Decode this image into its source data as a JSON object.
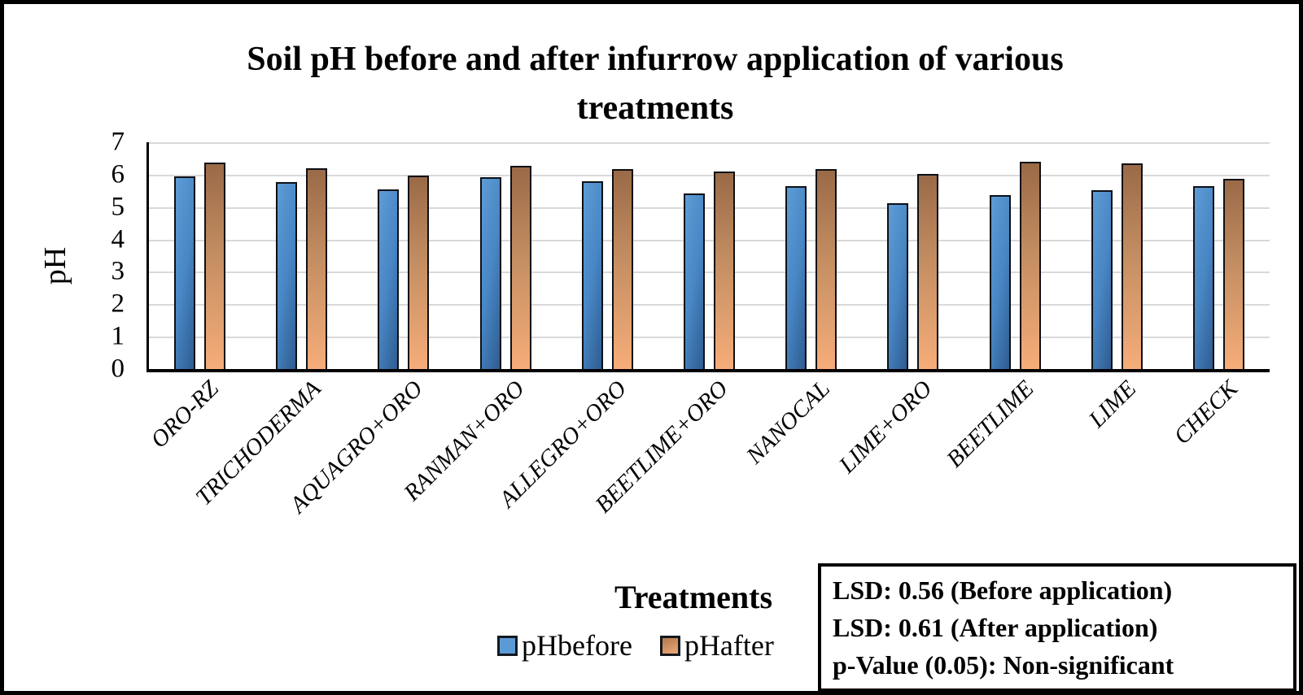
{
  "chart": {
    "title": "Soil pH before and after infurrow application of various treatments",
    "title_lines": [
      "Soil pH before and after infurrow application of various",
      "treatments"
    ],
    "ylabel": "pH",
    "xlabel": "Treatments"
  },
  "chart_data": {
    "type": "bar",
    "title": "Soil pH before and after infurrow application of various treatments",
    "xlabel": "Treatments",
    "ylabel": "pH",
    "ylim": [
      0,
      7
    ],
    "y_ticks": [
      0,
      1,
      2,
      3,
      4,
      5,
      6,
      7
    ],
    "grid": true,
    "legend_position": "bottom",
    "categories": [
      "ORO-RZ",
      "TRICHODERMA",
      "AQUAGRO+ORO",
      "RANMAN+ORO",
      "ALLEGRO+ORO",
      "BEETLIME+ORO",
      "NANOCAL",
      "LIME+ORO",
      "BEETLIME",
      "LIME",
      "CHECK"
    ],
    "series": [
      {
        "name": "pHbefore",
        "color": "#5b9bd5",
        "values": [
          5.95,
          5.78,
          5.55,
          5.93,
          5.8,
          5.43,
          5.64,
          5.12,
          5.37,
          5.52,
          5.64
        ]
      },
      {
        "name": "pHafter",
        "color": "#e8a26f",
        "values": [
          6.38,
          6.19,
          5.98,
          6.27,
          6.17,
          6.1,
          6.18,
          6.02,
          6.4,
          6.34,
          5.86
        ]
      }
    ]
  },
  "annotation_box": {
    "lines": [
      "LSD: 0.56 (Before application)",
      "LSD: 0.61 (After application)",
      "p-Value (0.05): Non-significant)"
    ]
  },
  "annotation_lines": [
    "LSD: 0.56 (Before application)",
    "LSD: 0.61 (After application)",
    "p-Value (0.05): Non-significant"
  ],
  "colors": {
    "grid": "#d9d9d9",
    "axis": "#000000",
    "bar_outline": "#0d1016"
  }
}
